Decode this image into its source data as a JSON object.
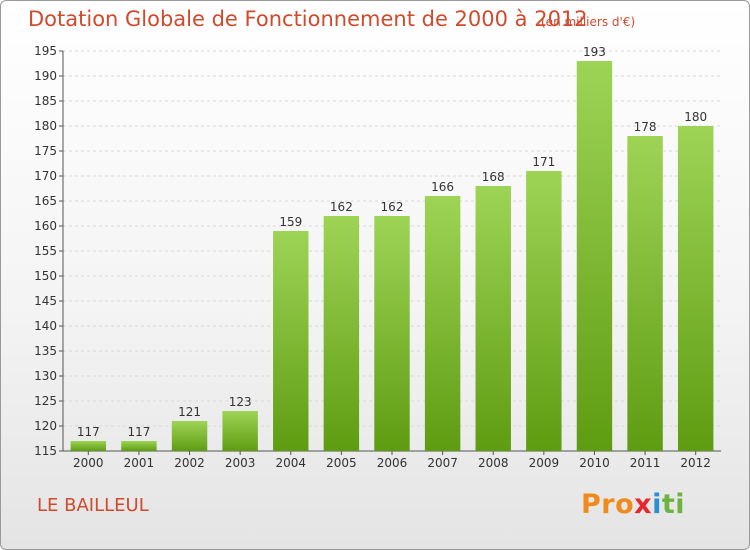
{
  "title": "Dotation Globale de Fonctionnement de 2000 à 2012",
  "subtitle": "(en milliers d'€)",
  "commune": "LE BAILLEUL",
  "logo": {
    "text": "Proxiti",
    "colors": [
      "#f08a1c",
      "#2a8fd6",
      "#e8262d",
      "#6cb33f"
    ]
  },
  "colors": {
    "bar_top": "#9ed456",
    "bar_bottom": "#5e9c12",
    "title": "#d04a2c"
  },
  "chart_data": {
    "type": "bar",
    "title": "Dotation Globale de Fonctionnement de 2000 à 2012",
    "subtitle": "(en milliers d'€)",
    "categories": [
      "2000",
      "2001",
      "2002",
      "2003",
      "2004",
      "2005",
      "2006",
      "2007",
      "2008",
      "2009",
      "2010",
      "2011",
      "2012"
    ],
    "values": [
      117,
      117,
      121,
      123,
      159,
      162,
      162,
      166,
      168,
      171,
      193,
      178,
      180
    ],
    "ylim": [
      115,
      195
    ],
    "yticks": [
      115,
      120,
      125,
      130,
      135,
      140,
      145,
      150,
      155,
      160,
      165,
      170,
      175,
      180,
      185,
      190,
      195
    ],
    "grid": true,
    "xlabel": "",
    "ylabel": ""
  }
}
